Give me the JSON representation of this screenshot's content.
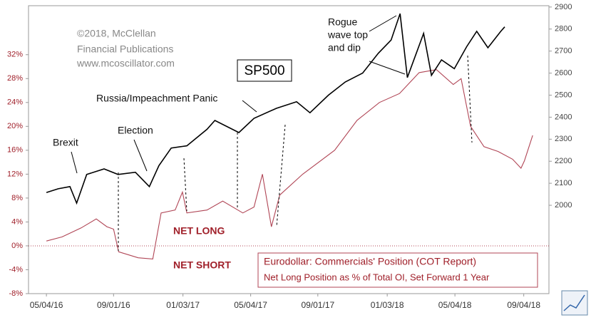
{
  "chart_data": {
    "type": "line",
    "xlim": [
      "2016-04-02",
      "2018-10-19"
    ],
    "xticks": [
      {
        "value": "2016-05-04",
        "label": "05/04/16"
      },
      {
        "value": "2016-09-01",
        "label": "09/01/16"
      },
      {
        "value": "2017-01-03",
        "label": "01/03/17"
      },
      {
        "value": "2017-05-04",
        "label": "05/04/17"
      },
      {
        "value": "2017-09-01",
        "label": "09/01/17"
      },
      {
        "value": "2018-01-03",
        "label": "01/03/18"
      },
      {
        "value": "2018-05-04",
        "label": "05/04/18"
      },
      {
        "value": "2018-09-04",
        "label": "09/04/18"
      }
    ],
    "ylim": [
      -8,
      40.2
    ],
    "yticks": [
      {
        "value": -8,
        "label": "-8%"
      },
      {
        "value": -4,
        "label": "-4%"
      },
      {
        "value": 0,
        "label": "0%"
      },
      {
        "value": 4,
        "label": "4%"
      },
      {
        "value": 8,
        "label": "8%"
      },
      {
        "value": 12,
        "label": "12%"
      },
      {
        "value": 16,
        "label": "16%"
      },
      {
        "value": 20,
        "label": "20%"
      },
      {
        "value": 24,
        "label": "24%"
      },
      {
        "value": 28,
        "label": "28%"
      },
      {
        "value": 32,
        "label": "32%"
      }
    ],
    "y2lim": [
      1599,
      2906
    ],
    "y2ticks": [
      2000,
      2100,
      2200,
      2300,
      2400,
      2500,
      2600,
      2700,
      2800,
      2900
    ],
    "grid": false,
    "series": [
      {
        "name": "SP500",
        "color": "#000000",
        "axis": "y2",
        "x": [
          "2016-05-04",
          "2016-05-25",
          "2016-06-15",
          "2016-06-27",
          "2016-07-15",
          "2016-08-15",
          "2016-09-09",
          "2016-10-10",
          "2016-11-04",
          "2016-11-21",
          "2016-12-13",
          "2017-01-10",
          "2017-02-15",
          "2017-03-01",
          "2017-04-13",
          "2017-05-10",
          "2017-06-19",
          "2017-07-25",
          "2017-08-18",
          "2017-09-20",
          "2017-10-20",
          "2017-11-20",
          "2017-12-18",
          "2018-01-10",
          "2018-01-26",
          "2018-02-08",
          "2018-03-09",
          "2018-03-23",
          "2018-04-10",
          "2018-05-03",
          "2018-05-25",
          "2018-06-12",
          "2018-07-02",
          "2018-07-25",
          "2018-08-01"
        ],
        "values": [
          2058,
          2075,
          2085,
          2010,
          2140,
          2165,
          2140,
          2150,
          2085,
          2180,
          2260,
          2270,
          2345,
          2385,
          2330,
          2395,
          2440,
          2470,
          2420,
          2500,
          2560,
          2600,
          2690,
          2750,
          2870,
          2580,
          2780,
          2590,
          2660,
          2620,
          2720,
          2790,
          2715,
          2790,
          2810
        ]
      },
      {
        "name": "Eurodollar: Commercials' Position (COT Report)",
        "color": "#b04555",
        "axis": "y",
        "x": [
          "2016-05-04",
          "2016-06-01",
          "2016-07-05",
          "2016-08-01",
          "2016-08-20",
          "2016-09-01",
          "2016-09-10",
          "2016-10-15",
          "2016-11-10",
          "2016-11-25",
          "2016-12-20",
          "2017-01-02",
          "2017-01-10",
          "2017-02-15",
          "2017-03-15",
          "2017-04-20",
          "2017-05-10",
          "2017-05-25",
          "2017-06-10",
          "2017-06-25",
          "2017-08-05",
          "2017-10-01",
          "2017-11-10",
          "2017-12-20",
          "2018-01-25",
          "2018-03-01",
          "2018-04-01",
          "2018-05-01",
          "2018-05-15",
          "2018-06-01",
          "2018-06-25",
          "2018-07-20",
          "2018-08-15",
          "2018-08-30",
          "2018-09-05",
          "2018-09-20"
        ],
        "values": [
          0.8,
          1.5,
          3,
          4.5,
          3.2,
          2.8,
          -1,
          -2,
          -2.2,
          5.5,
          6,
          9,
          5.5,
          6,
          7.5,
          5.5,
          6.5,
          12,
          3.2,
          8.5,
          12,
          16,
          21,
          24,
          25.5,
          29,
          29.5,
          27,
          28,
          20,
          16.6,
          15.8,
          14.5,
          13,
          14.2,
          18.5
        ]
      }
    ],
    "annotations": [
      "©2018, McClellan",
      "Financial Publications",
      "www.mcoscillator.com",
      "Rogue",
      "wave top",
      "and dip",
      "Russia/Impeachment  Panic",
      "Brexit",
      "Election",
      "NET LONG",
      "NET SHORT",
      "Net Long Position as % of Total OI, Set Forward 1 Year"
    ]
  }
}
